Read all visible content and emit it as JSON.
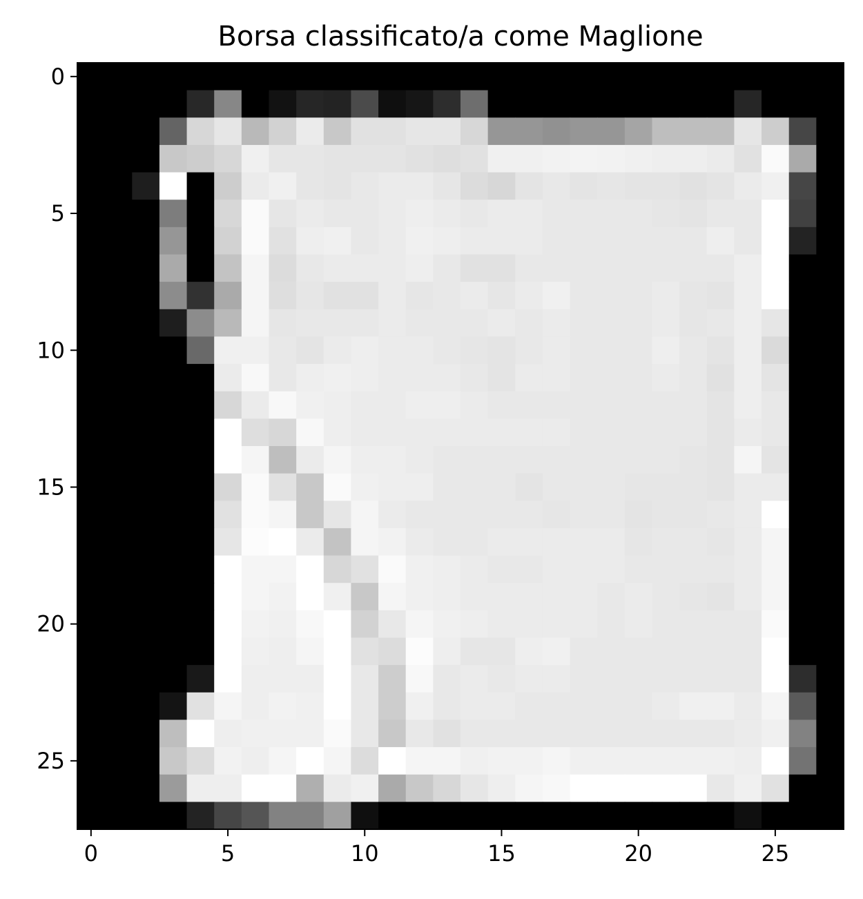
{
  "chart_data": {
    "type": "heatmap",
    "title": "Borsa classificato/a come Maglione",
    "colormap": "gray",
    "rows": 28,
    "cols": 28,
    "xlim": [
      -0.5,
      27.5
    ],
    "ylim": [
      27.5,
      -0.5
    ],
    "x_ticks": [
      0,
      5,
      10,
      15,
      20,
      25
    ],
    "y_ticks": [
      0,
      5,
      10,
      15,
      20,
      25
    ],
    "x_tick_labels": [
      "0",
      "5",
      "10",
      "15",
      "20",
      "25"
    ],
    "y_tick_labels": [
      "0",
      "5",
      "10",
      "15",
      "20",
      "25"
    ],
    "grid": false,
    "values": [
      [
        0,
        0,
        0,
        0,
        0,
        0,
        0,
        0,
        0,
        0,
        0,
        0,
        0,
        0,
        0,
        0,
        0,
        0,
        0,
        0,
        0,
        0,
        0,
        0,
        0,
        0,
        0,
        0
      ],
      [
        0,
        0,
        0,
        0,
        40,
        135,
        0,
        18,
        38,
        35,
        75,
        15,
        22,
        45,
        110,
        0,
        0,
        0,
        0,
        0,
        0,
        0,
        0,
        0,
        38,
        0,
        0,
        0
      ],
      [
        0,
        0,
        0,
        100,
        215,
        230,
        185,
        210,
        235,
        200,
        225,
        225,
        230,
        230,
        215,
        150,
        150,
        145,
        150,
        150,
        165,
        190,
        190,
        190,
        230,
        205,
        70,
        0
      ],
      [
        0,
        0,
        0,
        200,
        205,
        215,
        240,
        230,
        230,
        228,
        228,
        228,
        225,
        222,
        225,
        240,
        240,
        242,
        243,
        242,
        240,
        238,
        238,
        235,
        225,
        250,
        170,
        0
      ],
      [
        0,
        0,
        30,
        255,
        0,
        205,
        235,
        240,
        230,
        228,
        232,
        235,
        235,
        230,
        220,
        215,
        228,
        232,
        228,
        230,
        228,
        228,
        225,
        228,
        235,
        240,
        70,
        0
      ],
      [
        0,
        0,
        0,
        125,
        0,
        215,
        250,
        230,
        235,
        232,
        232,
        235,
        238,
        235,
        232,
        235,
        235,
        232,
        232,
        232,
        232,
        230,
        228,
        232,
        232,
        255,
        65,
        0
      ],
      [
        0,
        0,
        0,
        150,
        0,
        210,
        250,
        225,
        238,
        240,
        232,
        235,
        240,
        238,
        235,
        235,
        235,
        232,
        232,
        232,
        232,
        232,
        232,
        238,
        232,
        255,
        35,
        0
      ],
      [
        0,
        0,
        0,
        170,
        0,
        195,
        245,
        220,
        232,
        235,
        235,
        235,
        238,
        232,
        225,
        225,
        232,
        232,
        232,
        232,
        232,
        232,
        232,
        232,
        238,
        255,
        0,
        0
      ],
      [
        0,
        0,
        0,
        140,
        50,
        170,
        245,
        222,
        230,
        225,
        225,
        235,
        230,
        232,
        235,
        230,
        235,
        240,
        232,
        232,
        232,
        235,
        230,
        228,
        238,
        255,
        0,
        0
      ],
      [
        0,
        0,
        0,
        30,
        140,
        185,
        245,
        230,
        232,
        232,
        232,
        235,
        232,
        232,
        232,
        235,
        232,
        235,
        232,
        232,
        232,
        235,
        230,
        232,
        238,
        230,
        0,
        0
      ],
      [
        0,
        0,
        0,
        0,
        105,
        240,
        240,
        232,
        228,
        235,
        238,
        235,
        235,
        232,
        230,
        228,
        232,
        235,
        232,
        232,
        232,
        238,
        232,
        228,
        238,
        218,
        0,
        0
      ],
      [
        0,
        0,
        0,
        0,
        0,
        235,
        248,
        232,
        238,
        240,
        238,
        235,
        235,
        235,
        232,
        228,
        235,
        235,
        232,
        232,
        232,
        235,
        232,
        225,
        238,
        228,
        0,
        0
      ],
      [
        0,
        0,
        0,
        0,
        0,
        215,
        235,
        248,
        240,
        238,
        235,
        235,
        238,
        238,
        235,
        232,
        232,
        232,
        232,
        232,
        232,
        232,
        232,
        228,
        238,
        232,
        0,
        0
      ],
      [
        0,
        0,
        0,
        0,
        0,
        255,
        222,
        215,
        248,
        238,
        235,
        235,
        235,
        235,
        235,
        235,
        235,
        235,
        232,
        232,
        232,
        232,
        232,
        228,
        235,
        232,
        0,
        0
      ],
      [
        0,
        0,
        0,
        0,
        0,
        255,
        245,
        190,
        235,
        245,
        238,
        238,
        235,
        232,
        232,
        232,
        232,
        232,
        232,
        232,
        232,
        232,
        230,
        228,
        245,
        228,
        0,
        0
      ],
      [
        0,
        0,
        0,
        0,
        0,
        215,
        250,
        225,
        200,
        250,
        240,
        238,
        238,
        232,
        232,
        232,
        228,
        232,
        232,
        232,
        230,
        230,
        230,
        228,
        235,
        235,
        0,
        0
      ],
      [
        0,
        0,
        0,
        0,
        0,
        225,
        250,
        245,
        200,
        230,
        245,
        235,
        232,
        232,
        232,
        232,
        232,
        230,
        232,
        232,
        228,
        230,
        230,
        232,
        235,
        255,
        0,
        0
      ],
      [
        0,
        0,
        0,
        0,
        0,
        230,
        252,
        255,
        235,
        195,
        245,
        242,
        235,
        232,
        232,
        235,
        235,
        235,
        235,
        235,
        230,
        232,
        232,
        230,
        235,
        245,
        0,
        0
      ],
      [
        0,
        0,
        0,
        0,
        0,
        255,
        245,
        245,
        255,
        215,
        225,
        250,
        240,
        238,
        235,
        232,
        232,
        235,
        235,
        235,
        232,
        232,
        232,
        232,
        235,
        245,
        0,
        0
      ],
      [
        0,
        0,
        0,
        0,
        0,
        255,
        245,
        242,
        255,
        240,
        200,
        245,
        240,
        238,
        235,
        235,
        235,
        235,
        235,
        232,
        235,
        232,
        230,
        228,
        235,
        245,
        0,
        0
      ],
      [
        0,
        0,
        0,
        0,
        0,
        255,
        242,
        240,
        248,
        255,
        210,
        232,
        245,
        240,
        238,
        235,
        235,
        235,
        235,
        232,
        235,
        232,
        232,
        232,
        232,
        250,
        0,
        0
      ],
      [
        0,
        0,
        0,
        0,
        0,
        255,
        240,
        238,
        245,
        255,
        225,
        220,
        252,
        238,
        230,
        230,
        238,
        240,
        232,
        232,
        232,
        232,
        232,
        232,
        232,
        255,
        0,
        0
      ],
      [
        0,
        0,
        0,
        0,
        25,
        255,
        238,
        238,
        238,
        255,
        232,
        205,
        248,
        232,
        235,
        232,
        235,
        235,
        232,
        232,
        232,
        232,
        232,
        232,
        232,
        255,
        45,
        0
      ],
      [
        0,
        0,
        0,
        20,
        225,
        245,
        238,
        242,
        240,
        255,
        232,
        205,
        240,
        232,
        235,
        235,
        232,
        232,
        232,
        232,
        232,
        235,
        240,
        240,
        235,
        245,
        90,
        0
      ],
      [
        0,
        0,
        0,
        190,
        255,
        238,
        240,
        240,
        240,
        250,
        232,
        200,
        232,
        225,
        232,
        232,
        232,
        232,
        232,
        232,
        232,
        232,
        232,
        232,
        235,
        240,
        130,
        0
      ],
      [
        0,
        0,
        0,
        200,
        220,
        242,
        238,
        245,
        255,
        245,
        220,
        255,
        245,
        245,
        240,
        242,
        242,
        245,
        240,
        240,
        240,
        240,
        240,
        240,
        238,
        255,
        115,
        0
      ],
      [
        0,
        0,
        0,
        155,
        238,
        238,
        255,
        255,
        175,
        235,
        240,
        170,
        200,
        215,
        230,
        238,
        245,
        248,
        255,
        255,
        255,
        255,
        255,
        232,
        240,
        225,
        0,
        0
      ],
      [
        0,
        0,
        0,
        0,
        35,
        70,
        85,
        130,
        130,
        160,
        15,
        0,
        0,
        0,
        0,
        0,
        0,
        0,
        0,
        0,
        0,
        0,
        0,
        0,
        15,
        0,
        0,
        0
      ]
    ]
  }
}
